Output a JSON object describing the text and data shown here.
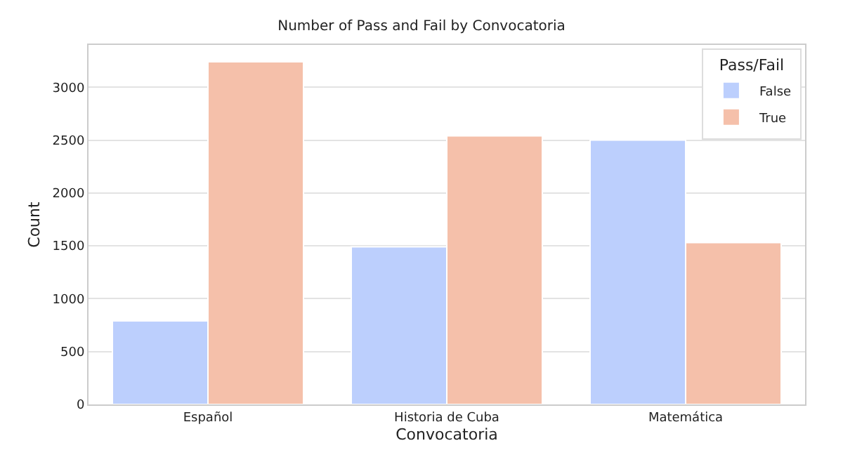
{
  "chart_data": {
    "type": "bar",
    "title": "Number of Pass and Fail by Convocatoria",
    "xlabel": "Convocatoria",
    "ylabel": "Count",
    "legend_title": "Pass/Fail",
    "categories": [
      "Español",
      "Historia de Cuba",
      "Matemática"
    ],
    "series": [
      {
        "name": "False",
        "color": "#bccffd",
        "values": [
          790,
          1490,
          2500
        ]
      },
      {
        "name": "True",
        "color": "#f5c0aa",
        "values": [
          3240,
          2540,
          1530
        ]
      }
    ],
    "ylim": [
      0,
      3400
    ],
    "yticks": [
      0,
      500,
      1000,
      1500,
      2000,
      2500,
      3000
    ],
    "grid": "y",
    "legend": "top right"
  }
}
